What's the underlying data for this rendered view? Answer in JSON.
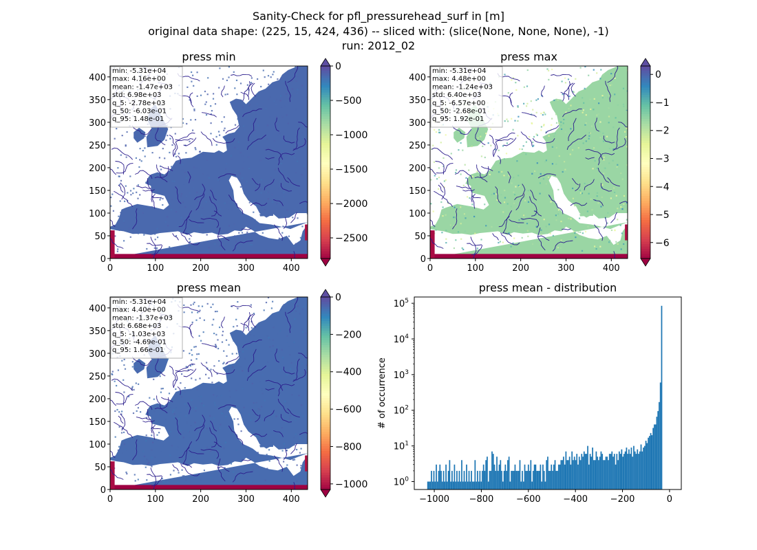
{
  "suptitle": {
    "line1": "Sanity-Check for pfl_pressurehead_surf in [m]",
    "line2": "original data shape: (225, 15, 424, 436) -- sliced with: (slice(None, None, None), -1)",
    "line3": "run: 2012_02"
  },
  "colors": {
    "water": "#2b1d8c",
    "nan": "#ffffff",
    "hist_bar": "#1f77b4",
    "cmap": [
      "#9e0142",
      "#d53e4f",
      "#f46d43",
      "#fdae61",
      "#fee08b",
      "#ffffbf",
      "#e6f598",
      "#abdda4",
      "#66c2a5",
      "#3288bd",
      "#5e4fa2"
    ]
  },
  "chart_data": [
    {
      "type": "heatmap",
      "title": "press min",
      "xlim": [
        0,
        436
      ],
      "ylim": [
        0,
        424
      ],
      "xticks": [
        0,
        100,
        200,
        300,
        400
      ],
      "yticks": [
        0,
        50,
        100,
        150,
        200,
        250,
        300,
        350,
        400
      ],
      "colorbar": {
        "min": -2800,
        "max": 0,
        "extend": "both",
        "ticks": [
          0,
          -500,
          -1000,
          -1500,
          -2000,
          -2500
        ],
        "ticklabels": [
          "0",
          "−500",
          "−1000",
          "−1500",
          "−2000",
          "−2500"
        ]
      },
      "stats": [
        "min: -5.31e+04",
        "max: 4.16e+00",
        "mean: -1.47e+03",
        "std: 6.98e+03",
        "q_5: -2.78e+03",
        "q_50: -6.03e-01",
        "q_95: 1.48e-01"
      ]
    },
    {
      "type": "heatmap",
      "title": "press max",
      "xlim": [
        0,
        436
      ],
      "ylim": [
        0,
        424
      ],
      "xticks": [
        0,
        100,
        200,
        300,
        400
      ],
      "yticks": [
        0,
        50,
        100,
        150,
        200,
        250,
        300,
        350,
        400
      ],
      "colorbar": {
        "min": -6.57,
        "max": 0.3,
        "extend": "both",
        "ticks": [
          0,
          -1,
          -2,
          -3,
          -4,
          -5,
          -6
        ],
        "ticklabels": [
          "0",
          "−1",
          "−2",
          "−3",
          "−4",
          "−5",
          "−6"
        ]
      },
      "stats": [
        "min: -5.31e+04",
        "max: 4.48e+00",
        "mean: -1.24e+03",
        "std: 6.40e+03",
        "q_5: -6.57e+00",
        "q_50: -2.68e-01",
        "q_95: 1.92e-01"
      ]
    },
    {
      "type": "heatmap",
      "title": "press mean",
      "xlim": [
        0,
        436
      ],
      "ylim": [
        0,
        424
      ],
      "xticks": [
        0,
        100,
        200,
        300,
        400
      ],
      "yticks": [
        0,
        50,
        100,
        150,
        200,
        250,
        300,
        350,
        400
      ],
      "colorbar": {
        "min": -1030,
        "max": 0,
        "extend": "both",
        "ticks": [
          0,
          -200,
          -400,
          -600,
          -800,
          -1000
        ],
        "ticklabels": [
          "0",
          "−200",
          "−400",
          "−600",
          "−800",
          "−1000"
        ]
      },
      "stats": [
        "min: -5.31e+04",
        "max: 4.40e+00",
        "mean: -1.37e+03",
        "std: 6.68e+03",
        "q_5: -1.03e+03",
        "q_50: -4.69e-01",
        "q_95: 1.66e-01"
      ]
    },
    {
      "type": "bar",
      "title": "press mean - distribution",
      "ylabel": "# of occurrence",
      "xlabel": "",
      "yscale": "log",
      "xlim": [
        -1085,
        50
      ],
      "ylim": [
        0.6,
        150000
      ],
      "xticks": [
        -1000,
        -800,
        -600,
        -400,
        -200,
        0
      ],
      "xticklabels": [
        "−1000",
        "−800",
        "−600",
        "−400",
        "−200",
        "0"
      ],
      "yticks": [
        1,
        10,
        100,
        1000,
        10000,
        100000
      ],
      "yticklabels": [
        "10^0",
        "10^1",
        "10^2",
        "10^3",
        "10^4",
        "10^5"
      ],
      "bin_width": 5.15,
      "bin_start": -1030,
      "counts": [
        1,
        1,
        1,
        2,
        1,
        2,
        1,
        3,
        1,
        2,
        3,
        2,
        1,
        2,
        1,
        3,
        1,
        2,
        4,
        1,
        2,
        1,
        3,
        1,
        2,
        1,
        2,
        1,
        4,
        1,
        2,
        1,
        3,
        1,
        2,
        1,
        2,
        1,
        1,
        4,
        1,
        2,
        1,
        2,
        1,
        2,
        3,
        2,
        4,
        5,
        1,
        2,
        2,
        7,
        6,
        3,
        2,
        5,
        2,
        3,
        4,
        2,
        1,
        2,
        3,
        2,
        4,
        5,
        1,
        2,
        2,
        2,
        3,
        2,
        2,
        2,
        4,
        1,
        2,
        1,
        3,
        2,
        2,
        3,
        2,
        4,
        1,
        2,
        3,
        3,
        2,
        2,
        2,
        3,
        1,
        3,
        2,
        1,
        4,
        5,
        2,
        2,
        3,
        2,
        3,
        4,
        2,
        2,
        3,
        3,
        4,
        4,
        5,
        3,
        7,
        4,
        4,
        5,
        3,
        7,
        4,
        5,
        4,
        6,
        3,
        5,
        4,
        6,
        5,
        7,
        6,
        6,
        10,
        3,
        6,
        5,
        9,
        4,
        4,
        7,
        5,
        4,
        5,
        7,
        6,
        4,
        4,
        5,
        5,
        4,
        6,
        6,
        7,
        5,
        6,
        3,
        6,
        4,
        7,
        6,
        8,
        5,
        6,
        7,
        9,
        6,
        8,
        6,
        9,
        5,
        10,
        7,
        6,
        8,
        6,
        7,
        11,
        7,
        9,
        10,
        14,
        12,
        17,
        19,
        23,
        20,
        32,
        40,
        40,
        66,
        95,
        170,
        600,
        85000
      ]
    }
  ]
}
